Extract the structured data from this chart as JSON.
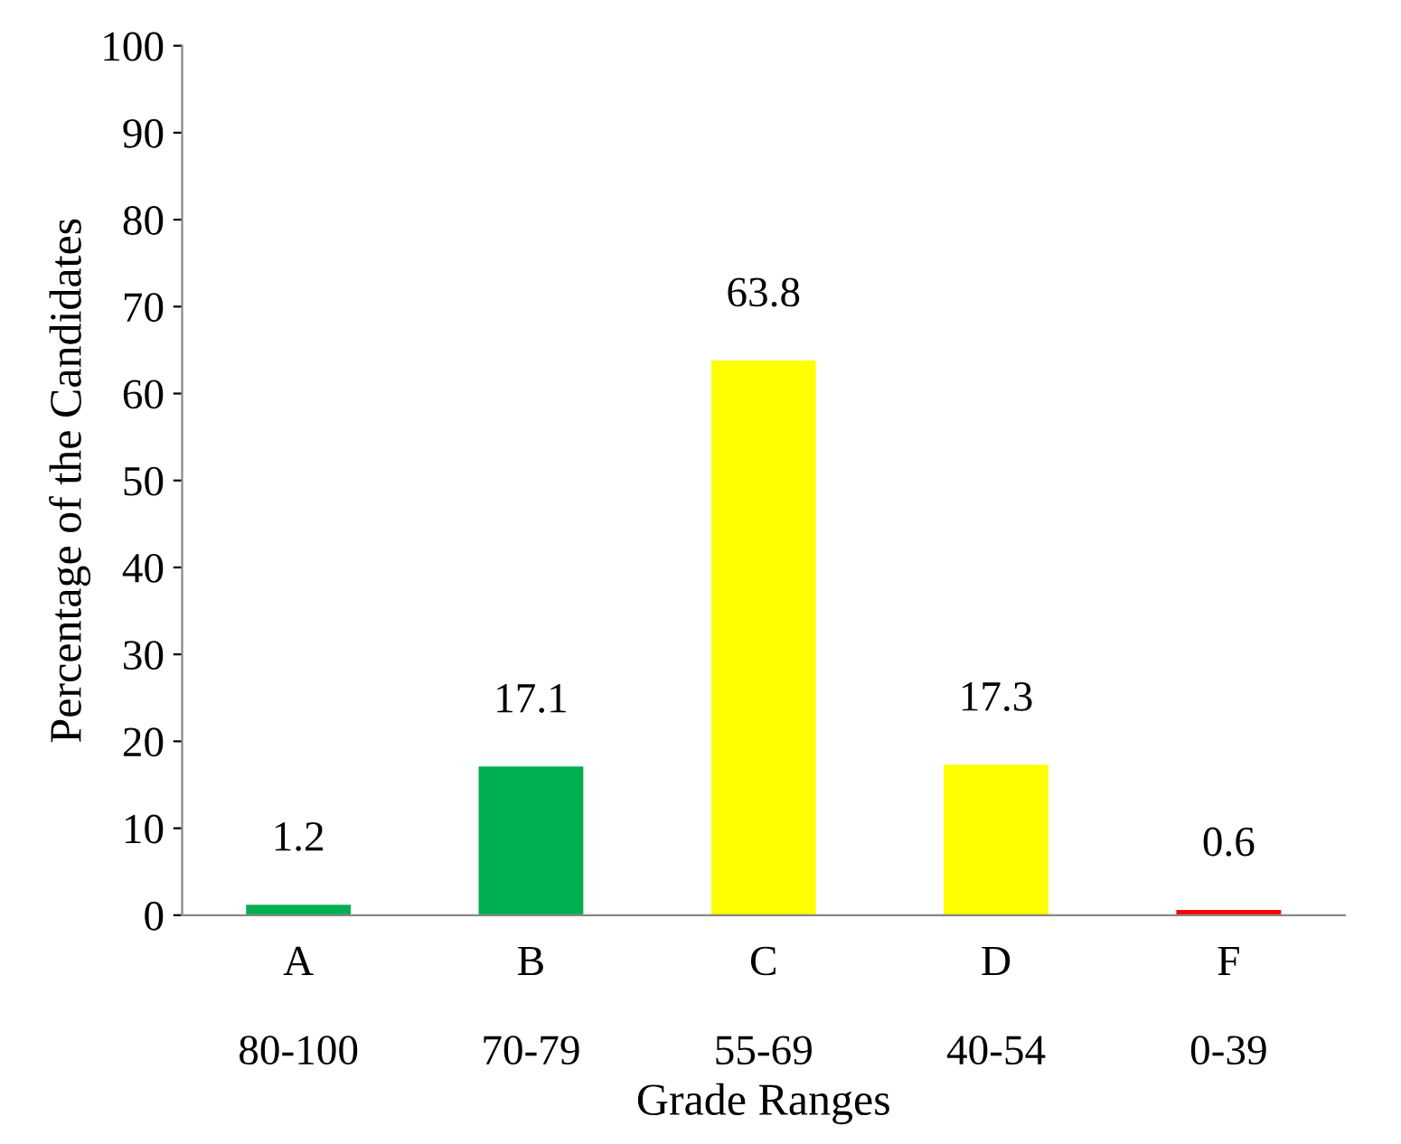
{
  "chart_data": {
    "type": "bar",
    "xlabel": "Grade Ranges",
    "ylabel": "Percentage of the Candidates",
    "categories": [
      "A\n\n80-100",
      "B\n\n70-79",
      "C\n\n55-69",
      "D\n\n40-54",
      "F\n\n0-39"
    ],
    "values": [
      1.2,
      17.1,
      63.8,
      17.3,
      0.6
    ],
    "colors": [
      "#00b050",
      "#00b050",
      "#ffff00",
      "#ffff00",
      "#ff0000"
    ],
    "ylim": [
      0,
      100
    ],
    "yticks": [
      0,
      10,
      20,
      30,
      40,
      50,
      60,
      70,
      80,
      90,
      100
    ],
    "grid": false,
    "legend": false,
    "data_labels": true
  }
}
